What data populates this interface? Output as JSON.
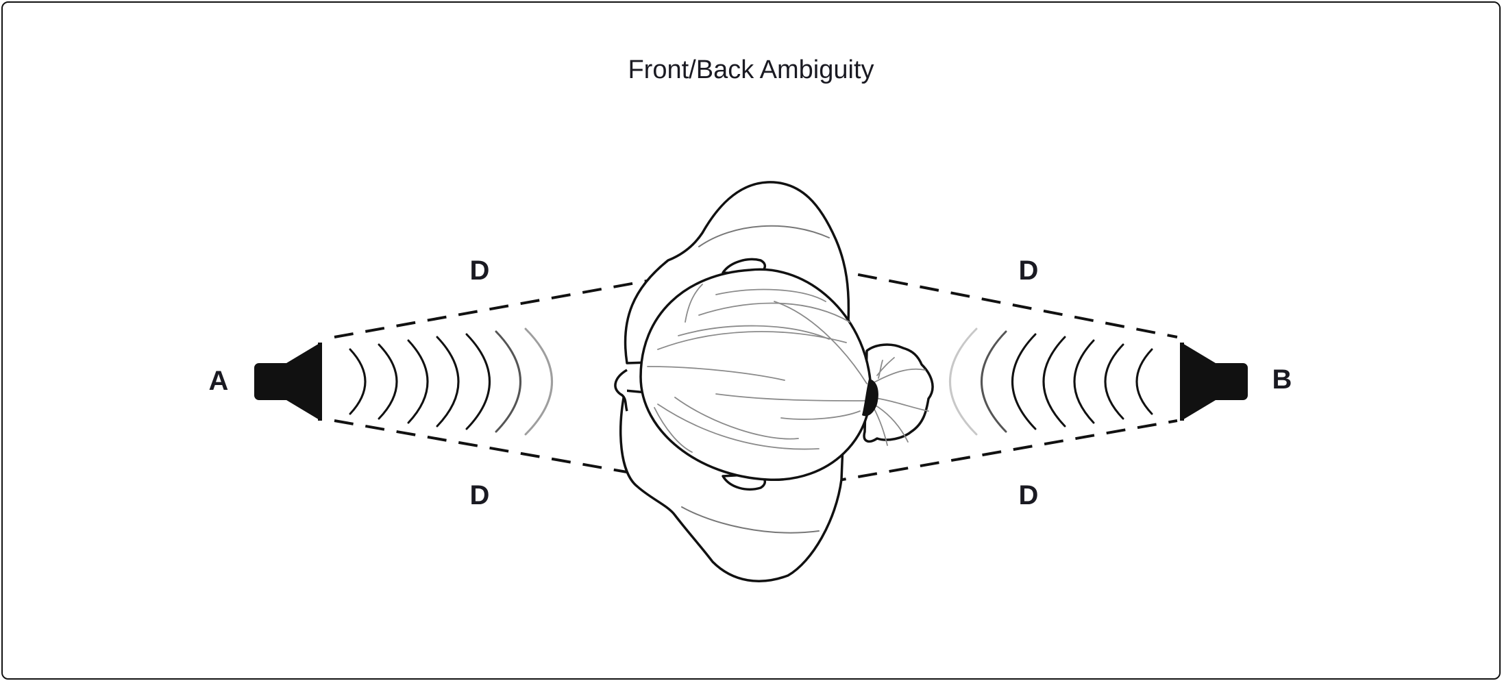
{
  "title": "Front/Back Ambiguity",
  "speakers": {
    "left_label": "A",
    "right_label": "B"
  },
  "paths": {
    "distance_label": "D",
    "top_left_label": "D",
    "top_right_label": "D",
    "bottom_left_label": "D",
    "bottom_right_label": "D"
  },
  "colors": {
    "ink": "#111111",
    "text": "#1a1a22",
    "fade_1": "#555555",
    "fade_2": "#9e9e9e",
    "fade_3": "#c8c8c8"
  },
  "icons": [
    "speaker-icon",
    "head-top-view-icon",
    "arrowhead-icon"
  ]
}
